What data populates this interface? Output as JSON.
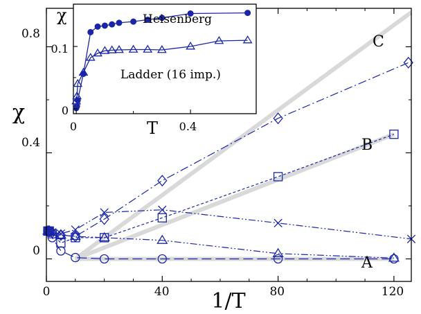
{
  "chart_data": [
    {
      "type": "line",
      "panel": "main",
      "xlabel": "1/T",
      "ylabel": "χ",
      "xlim": [
        0,
        126
      ],
      "ylim": [
        -0.085,
        0.945
      ],
      "x_ticks": [
        0,
        40,
        80,
        120
      ],
      "y_ticks": [
        0,
        0.4,
        0.8
      ],
      "x_tick_labels": [
        "0",
        "40",
        "80",
        "120"
      ],
      "y_tick_labels": [
        "0",
        "0.4",
        "0.8"
      ],
      "grid": false,
      "colors": {
        "data": "#1a25a8",
        "reference": "#d9d9d9",
        "axes": "#000000"
      },
      "annotations": [
        "C",
        "B",
        "A"
      ],
      "reference_lines": [
        {
          "label": "C",
          "x": [
            10,
            126
          ],
          "y": [
            0.0,
            0.93
          ]
        },
        {
          "label": "B",
          "x": [
            10,
            120
          ],
          "y": [
            0.0,
            0.47
          ]
        },
        {
          "label": "A",
          "x": [
            10,
            120
          ],
          "y": [
            0.0,
            0.0
          ]
        }
      ],
      "series": [
        {
          "marker": "diamond",
          "dash": "dash-dot",
          "x": [
            0.5,
            1,
            2,
            5,
            10,
            20,
            40,
            80,
            125
          ],
          "y": [
            0.105,
            0.105,
            0.1,
            0.09,
            0.085,
            0.15,
            0.295,
            0.53,
            0.74
          ]
        },
        {
          "marker": "square",
          "dash": "short-dash",
          "x": [
            0.5,
            1,
            2,
            5,
            10,
            20,
            40,
            80,
            120
          ],
          "y": [
            0.105,
            0.105,
            0.095,
            0.06,
            0.08,
            0.08,
            0.155,
            0.31,
            0.47
          ]
        },
        {
          "marker": "cross",
          "dash": "dash-dot-dot",
          "x": [
            0.5,
            1,
            2,
            5,
            10,
            20,
            40,
            80,
            126
          ],
          "y": [
            0.105,
            0.105,
            0.1,
            0.095,
            0.11,
            0.175,
            0.185,
            0.135,
            0.075
          ]
        },
        {
          "marker": "triangle",
          "dash": "dash-dot-dot",
          "x": [
            0.5,
            1,
            2,
            5,
            10,
            20,
            40,
            80,
            120
          ],
          "y": [
            0.105,
            0.105,
            0.1,
            0.09,
            0.085,
            0.08,
            0.07,
            0.02,
            0.003
          ]
        },
        {
          "marker": "circle",
          "dash": "long-dash",
          "x": [
            0.5,
            1,
            2,
            5,
            10,
            20,
            40,
            80,
            120
          ],
          "y": [
            0.105,
            0.1,
            0.08,
            0.03,
            0.005,
            0.0,
            0.0,
            0.0,
            0.0
          ]
        }
      ]
    },
    {
      "type": "line",
      "panel": "inset",
      "xlabel": "T",
      "ylabel": "χ",
      "xlim": [
        -0.01,
        0.63
      ],
      "ylim": [
        -0.008,
        0.168
      ],
      "x_ticks": [
        0,
        0.4
      ],
      "y_ticks": [
        0,
        0.1
      ],
      "x_tick_labels": [
        "0",
        "0.4"
      ],
      "y_tick_labels": [
        "0",
        "0.1"
      ],
      "grid": false,
      "series": [
        {
          "name": "Heisenberg",
          "marker": "filled-circle",
          "x": [
            0.0,
            0.0025,
            0.005,
            0.025,
            0.05,
            0.075,
            0.1,
            0.125,
            0.15,
            0.2,
            0.25,
            0.3,
            0.4,
            0.6
          ],
          "y": [
            0.001,
            0.004,
            0.0135,
            0.056,
            0.123,
            0.132,
            0.1335,
            0.1355,
            0.138,
            0.14,
            0.143,
            0.146,
            0.153,
            0.154
          ]
        },
        {
          "name": "Ladder (16 imp.)",
          "marker": "triangle",
          "x": [
            0.0,
            0.0025,
            0.005,
            0.025,
            0.05,
            0.075,
            0.1,
            0.125,
            0.15,
            0.2,
            0.25,
            0.3,
            0.4,
            0.5,
            0.6
          ],
          "y": [
            0.012,
            0.02,
            0.04,
            0.058,
            0.082,
            0.089,
            0.093,
            0.094,
            0.0945,
            0.095,
            0.095,
            0.0945,
            0.1,
            0.109,
            0.11
          ]
        }
      ]
    }
  ]
}
